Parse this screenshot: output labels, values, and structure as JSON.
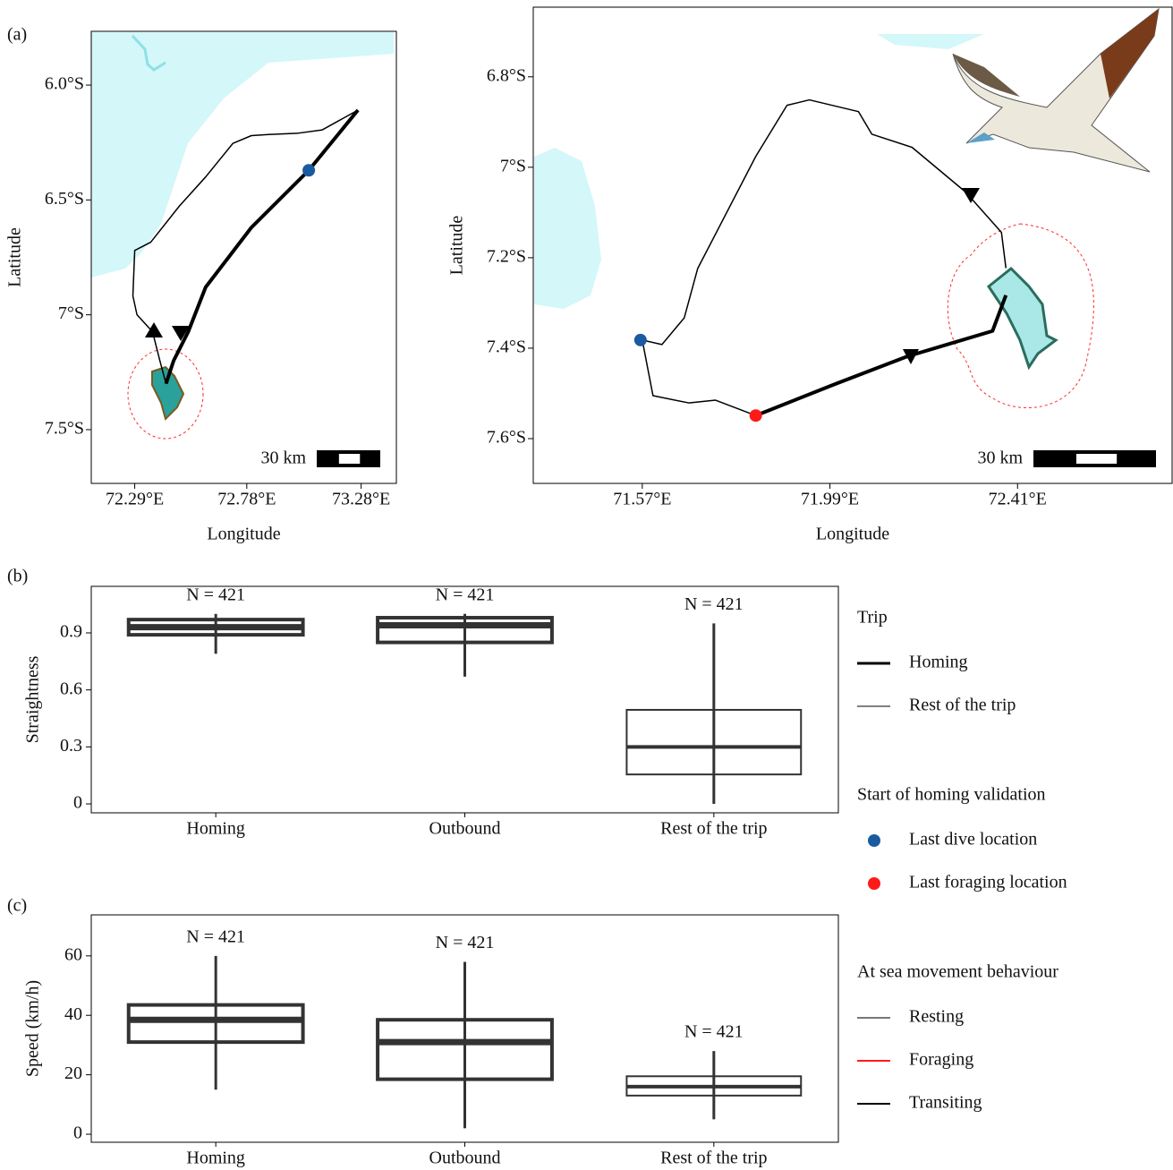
{
  "chart_data": [
    {
      "type": "map",
      "panel_label": "(a)",
      "x_label": "Longitude",
      "y_label": "Latitude",
      "scale_bar": "30 km",
      "xlim": [
        72.1,
        73.434
      ],
      "ylim": [
        -7.734,
        -5.766
      ],
      "xticks": [
        {
          "value": 72.29,
          "label": "72.29°E"
        },
        {
          "value": 72.78,
          "label": "72.78°E"
        },
        {
          "value": 73.28,
          "label": "73.28°E"
        }
      ],
      "yticks": [
        {
          "value": -6.0,
          "label": "6.0°S"
        },
        {
          "value": -6.5,
          "label": "6.5°S"
        },
        {
          "value": -7,
          "label": "7°S"
        },
        {
          "value": -7.5,
          "label": "7.5°S"
        }
      ],
      "series": [
        {
          "color": "#000000",
          "width": 1.5,
          "x": [
            72.427,
            72.4,
            72.368,
            72.3,
            72.282,
            72.29,
            72.36,
            72.485,
            72.6,
            72.719,
            72.8,
            72.876,
            73.0,
            73.11,
            73.266
          ],
          "y": [
            -7.3,
            -7.2,
            -7.074,
            -7.0,
            -6.918,
            -6.72,
            -6.684,
            -6.527,
            -6.4,
            -6.254,
            -6.22,
            -6.215,
            -6.21,
            -6.195,
            -6.109
          ]
        },
        {
          "color": "#000000",
          "width": 4,
          "x": [
            73.266,
            73.051,
            72.8,
            72.6,
            72.524,
            72.46,
            72.427
          ],
          "y": [
            -6.109,
            -6.371,
            -6.62,
            -6.88,
            -7.074,
            -7.2,
            -7.3
          ]
        }
      ],
      "markers": [
        {
          "color": "#1a5aa0",
          "x": 73.051,
          "y": -6.371
        }
      ]
    },
    {
      "type": "map",
      "x_label": "Longitude",
      "y_label": "Latitude",
      "scale_bar": "30 km",
      "xlim": [
        71.326,
        72.756
      ],
      "ylim": [
        -7.699,
        -6.646
      ],
      "xticks": [
        {
          "value": 71.57,
          "label": "71.57°E"
        },
        {
          "value": 71.99,
          "label": "71.99°E"
        },
        {
          "value": 72.41,
          "label": "72.41°E"
        }
      ],
      "yticks": [
        {
          "value": -6.8,
          "label": "6.8°S"
        },
        {
          "value": -7,
          "label": "7°S"
        },
        {
          "value": -7.2,
          "label": "7.2°S"
        },
        {
          "value": -7.4,
          "label": "7.4°S"
        },
        {
          "value": -7.6,
          "label": "7.6°S"
        }
      ],
      "series": [
        {
          "color": "#000000",
          "width": 1.5,
          "x": [
            72.384,
            72.374,
            72.294,
            72.174,
            72.084,
            72.054,
            71.944,
            71.894,
            71.824,
            71.694,
            71.664,
            71.614,
            71.57,
            71.594,
            71.674,
            71.734,
            71.824
          ],
          "y": [
            -7.223,
            -7.144,
            -7.055,
            -6.956,
            -6.927,
            -6.877,
            -6.851,
            -6.863,
            -6.976,
            -7.224,
            -7.333,
            -7.392,
            -7.382,
            -7.505,
            -7.521,
            -7.515,
            -7.549
          ]
        },
        {
          "color": "#000000",
          "width": 4,
          "x": [
            71.824,
            72.0,
            72.164,
            72.354,
            72.384
          ],
          "y": [
            -7.549,
            -7.48,
            -7.418,
            -7.362,
            -7.283
          ]
        }
      ],
      "markers": [
        {
          "color": "#1a5aa0",
          "x": 71.566,
          "y": -7.382
        },
        {
          "color": "#ff1a1a",
          "x": 71.824,
          "y": -7.549
        }
      ]
    },
    {
      "type": "box",
      "panel_label": "(b)",
      "y_label": "Straightness",
      "color": "#333333",
      "categories": [
        "Homing",
        "Outbound",
        "Rest of the trip"
      ],
      "annotations": [
        "N = 421",
        "N = 421",
        "N = 421"
      ],
      "ylim": [
        -0.047,
        1.145
      ],
      "yticks": [
        0,
        0.3,
        0.6,
        0.9
      ],
      "boxes": [
        {
          "low": 0.79,
          "q1": 0.89,
          "median": 0.93,
          "q3": 0.97,
          "high": 1.0
        },
        {
          "low": 0.67,
          "q1": 0.85,
          "median": 0.94,
          "q3": 0.98,
          "high": 1.0
        },
        {
          "low": 0,
          "q1": 0.155,
          "median": 0.3,
          "q3": 0.495,
          "high": 0.95
        }
      ]
    },
    {
      "type": "box",
      "panel_label": "(c)",
      "y_label": "Speed (km/h)",
      "color": "#333333",
      "categories": [
        "Homing",
        "Outbound",
        "Rest of the trip"
      ],
      "annotations": [
        "N = 421",
        "N = 421",
        "N = 421"
      ],
      "ylim": [
        -2.7,
        73.8
      ],
      "yticks": [
        0,
        20,
        40,
        60
      ],
      "boxes": [
        {
          "low": 15,
          "q1": 31,
          "median": 38.5,
          "q3": 43.5,
          "high": 60
        },
        {
          "low": 2,
          "q1": 18.5,
          "median": 31,
          "q3": 38.5,
          "high": 58
        },
        {
          "low": 5,
          "q1": 13,
          "median": 16,
          "q3": 19.5,
          "high": 28
        }
      ]
    }
  ],
  "legend": {
    "groups": [
      {
        "title": "Trip",
        "items": [
          {
            "name": "Homing",
            "kind": "line",
            "color": "#000000",
            "width": 3
          },
          {
            "name": "Rest of the trip",
            "kind": "line",
            "color": "#000000",
            "width": 1
          }
        ]
      },
      {
        "title": "Start of homing validation",
        "items": [
          {
            "name": "Last dive location",
            "kind": "dot",
            "color": "#1a5aa0"
          },
          {
            "name": "Last foraging location",
            "kind": "dot",
            "color": "#ff1a1a"
          }
        ]
      },
      {
        "title": "At sea movement behaviour",
        "items": [
          {
            "name": "Resting",
            "kind": "line",
            "color": "#777777",
            "width": 2
          },
          {
            "name": "Foraging",
            "kind": "line",
            "color": "#ff1a1a",
            "width": 2
          },
          {
            "name": "Transiting",
            "kind": "line",
            "color": "#000000",
            "width": 2
          }
        ]
      }
    ]
  }
}
